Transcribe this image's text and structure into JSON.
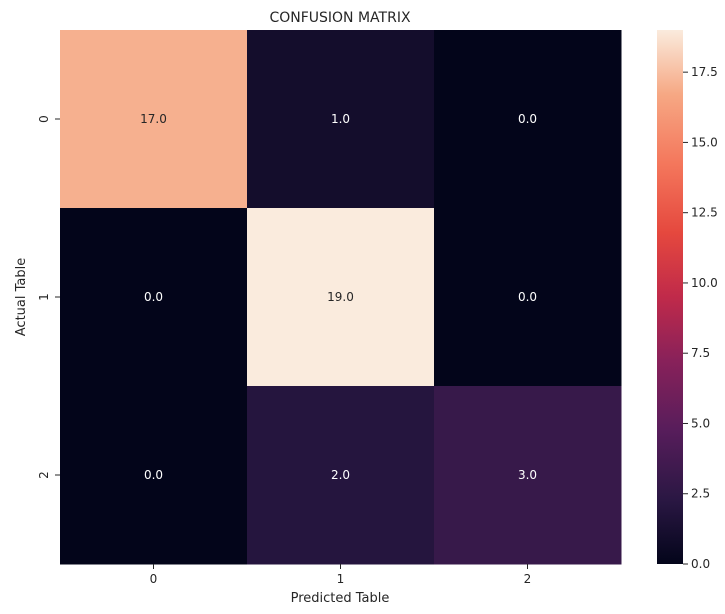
{
  "chart_data": {
    "type": "heatmap",
    "title": "CONFUSION MATRIX",
    "xlabel": "Predicted Table",
    "ylabel": "Actual Table",
    "x_categories": [
      "0",
      "1",
      "2"
    ],
    "y_categories": [
      "0",
      "1",
      "2"
    ],
    "values": [
      [
        17.0,
        1.0,
        0.0
      ],
      [
        0.0,
        19.0,
        0.0
      ],
      [
        0.0,
        2.0,
        3.0
      ]
    ],
    "cell_labels": [
      [
        "17.0",
        "1.0",
        "0.0"
      ],
      [
        "0.0",
        "19.0",
        "0.0"
      ],
      [
        "0.0",
        "2.0",
        "3.0"
      ]
    ],
    "colormap": "rocket",
    "colorbar": {
      "range": [
        0,
        19
      ],
      "ticks": [
        0.0,
        2.5,
        5.0,
        7.5,
        10.0,
        12.5,
        15.0,
        17.5
      ],
      "tick_labels": [
        "0.0",
        "2.5",
        "5.0",
        "7.5",
        "10.0",
        "12.5",
        "15.0",
        "17.5"
      ]
    }
  }
}
